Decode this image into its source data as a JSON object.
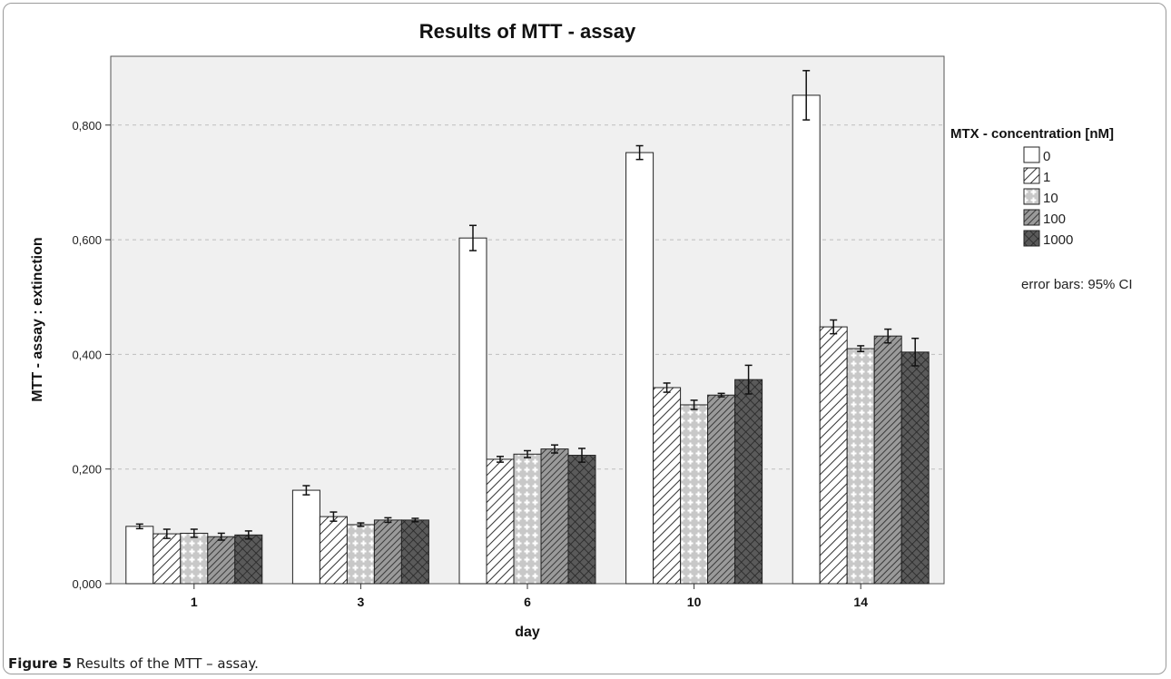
{
  "chart_data": {
    "type": "bar",
    "title": "Results of MTT - assay",
    "xlabel": "day",
    "ylabel": "MTT - assay : extinction",
    "categories": [
      "1",
      "3",
      "6",
      "10",
      "14"
    ],
    "ylim": [
      0,
      0.92
    ],
    "yticks": [
      0,
      0.2,
      0.4,
      0.6,
      0.8
    ],
    "ytick_labels": [
      "0,000",
      "0,200",
      "0,400",
      "0,600",
      "0,800"
    ],
    "grid": "horizontal dashed",
    "legend_title": "MTX - concentration [nM]",
    "legend_position": "right",
    "error_note": "error bars: 95% CI",
    "series": [
      {
        "name": "0",
        "pattern": "white",
        "values": [
          0.1,
          0.163,
          0.603,
          0.752,
          0.852
        ],
        "ci": [
          0.004,
          0.008,
          0.022,
          0.012,
          0.043
        ]
      },
      {
        "name": "1",
        "pattern": "diagonal",
        "values": [
          0.087,
          0.117,
          0.217,
          0.342,
          0.448
        ],
        "ci": [
          0.008,
          0.008,
          0.005,
          0.008,
          0.012
        ]
      },
      {
        "name": "10",
        "pattern": "cross-dots",
        "values": [
          0.088,
          0.103,
          0.226,
          0.312,
          0.41
        ],
        "ci": [
          0.007,
          0.003,
          0.006,
          0.008,
          0.005
        ]
      },
      {
        "name": "100",
        "pattern": "dense-diag",
        "values": [
          0.082,
          0.111,
          0.235,
          0.329,
          0.432
        ],
        "ci": [
          0.006,
          0.004,
          0.007,
          0.003,
          0.012
        ]
      },
      {
        "name": "1000",
        "pattern": "crosshatch",
        "values": [
          0.085,
          0.111,
          0.224,
          0.356,
          0.404
        ],
        "ci": [
          0.007,
          0.003,
          0.012,
          0.025,
          0.024
        ]
      }
    ],
    "colors": {
      "plot_bg": "#f0f0f0",
      "grid": "#bdbdbd",
      "bar_edge": "#222222"
    }
  },
  "caption": {
    "label": "Figure 5",
    "text": " Results of the MTT – assay."
  }
}
